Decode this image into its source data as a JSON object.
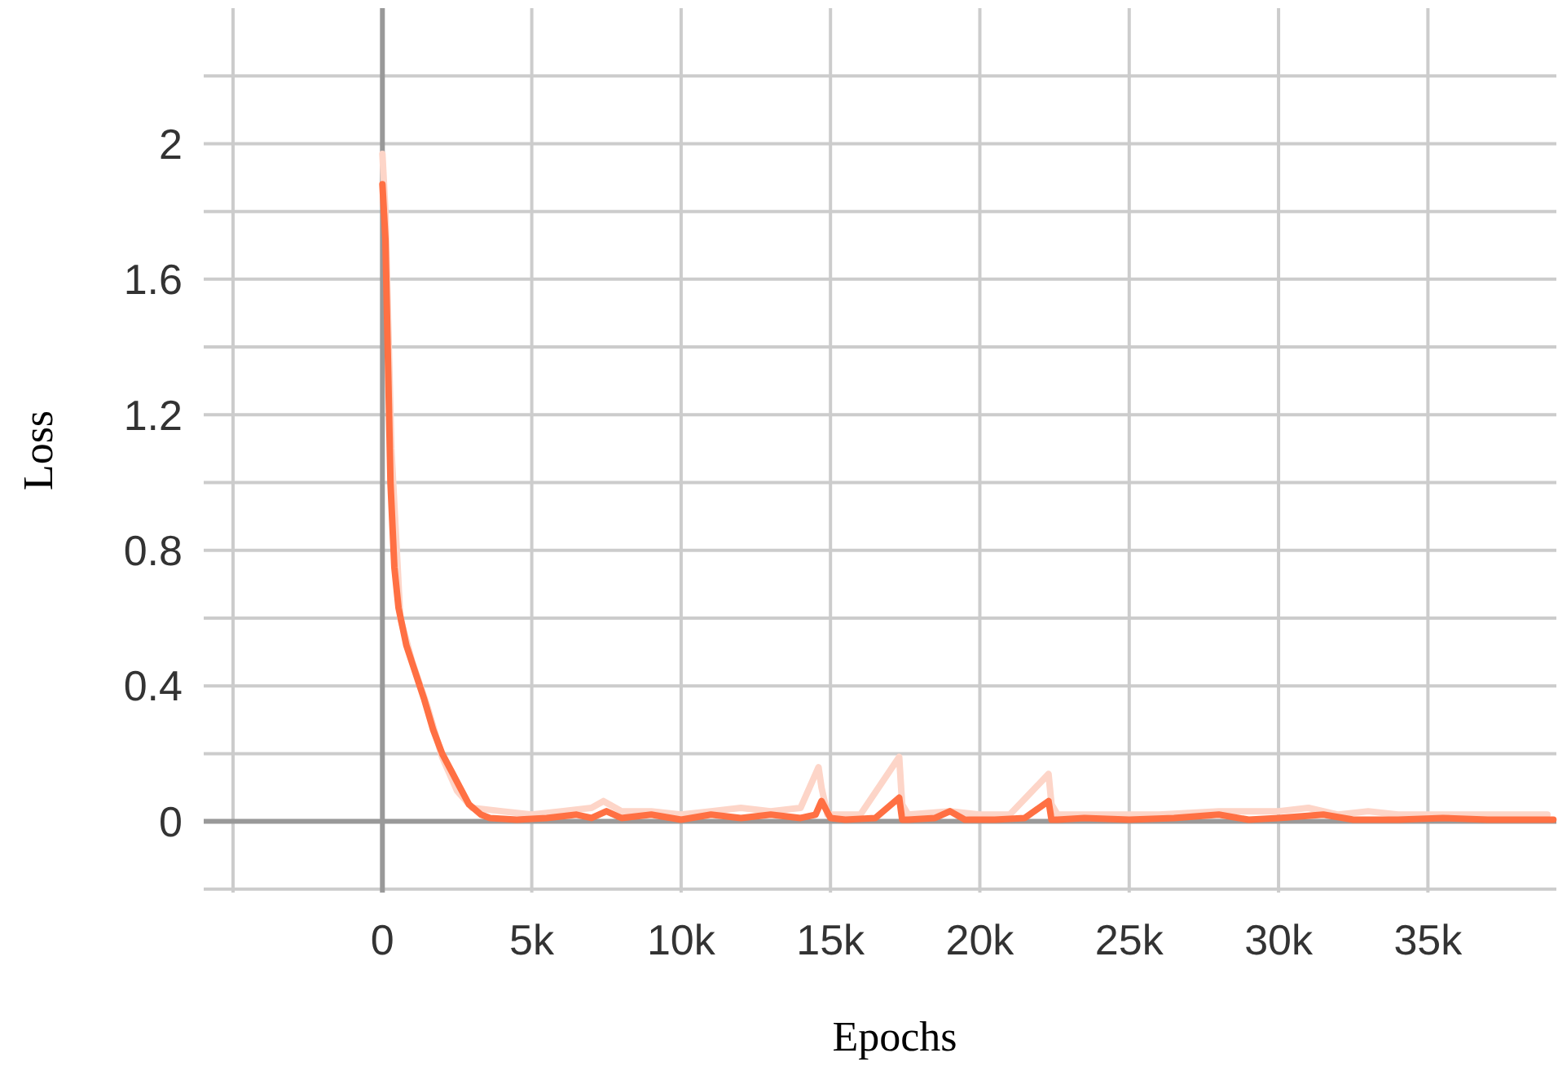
{
  "chart_data": {
    "type": "line",
    "xlabel": "Epochs",
    "ylabel": "Loss",
    "xlim": [
      -5000,
      39300
    ],
    "ylim": [
      -0.21,
      2.4
    ],
    "xticks": [
      {
        "value": -5000,
        "label": null
      },
      {
        "value": 0,
        "label": "0"
      },
      {
        "value": 5000,
        "label": "5k"
      },
      {
        "value": 10000,
        "label": "10k"
      },
      {
        "value": 15000,
        "label": "15k"
      },
      {
        "value": 20000,
        "label": "20k"
      },
      {
        "value": 25000,
        "label": "25k"
      },
      {
        "value": 30000,
        "label": "30k"
      },
      {
        "value": 35000,
        "label": "35k"
      }
    ],
    "yticks": [
      {
        "value": -0.2,
        "label": null
      },
      0,
      {
        "value": 0.2,
        "label": null
      },
      0.4,
      {
        "value": 0.6,
        "label": null
      },
      0.8,
      {
        "value": 1.0,
        "label": null
      },
      1.2,
      {
        "value": 1.4,
        "label": null
      },
      1.6,
      {
        "value": 1.8,
        "label": null
      },
      2,
      {
        "value": 2.2,
        "label": null
      }
    ],
    "grid": true,
    "line_style": "solid",
    "marker": "none",
    "series": [
      {
        "color": "#fdd5c8",
        "x": [
          0,
          100,
          300,
          600,
          1000,
          1500,
          2000,
          2500,
          3000,
          4000,
          5000,
          6000,
          7000,
          7400,
          8000,
          9000,
          10000,
          11000,
          12000,
          13000,
          14000,
          14600,
          14700,
          14900,
          16000,
          17300,
          17400,
          17600,
          19000,
          20000,
          21000,
          22300,
          22400,
          22600,
          24000,
          26000,
          28000,
          30000,
          31000,
          32000,
          33000,
          34000,
          36000,
          38000,
          39000
        ],
        "values": [
          1.97,
          1.8,
          1.1,
          0.6,
          0.47,
          0.34,
          0.19,
          0.09,
          0.04,
          0.03,
          0.02,
          0.03,
          0.04,
          0.06,
          0.03,
          0.03,
          0.02,
          0.03,
          0.04,
          0.03,
          0.04,
          0.16,
          0.1,
          0.02,
          0.02,
          0.19,
          0.05,
          0.02,
          0.03,
          0.02,
          0.02,
          0.14,
          0.05,
          0.02,
          0.02,
          0.02,
          0.03,
          0.03,
          0.04,
          0.02,
          0.03,
          0.02,
          0.02,
          0.02,
          0.02
        ]
      },
      {
        "color": "#ff7043",
        "x": [
          0,
          100,
          200,
          270,
          400,
          540,
          800,
          1100,
          1400,
          1700,
          2000,
          2300,
          2600,
          2900,
          3300,
          3600,
          4500,
          5500,
          6500,
          7000,
          7500,
          8000,
          9000,
          10000,
          11000,
          12000,
          13000,
          14000,
          14500,
          14700,
          15000,
          15500,
          16500,
          17300,
          17400,
          17600,
          18500,
          19000,
          19500,
          20500,
          21500,
          22300,
          22400,
          22600,
          23500,
          25000,
          26500,
          28000,
          29000,
          30000,
          31500,
          32500,
          34000,
          35500,
          37000,
          38500,
          39200
        ],
        "values": [
          1.88,
          1.72,
          1.3,
          1.0,
          0.75,
          0.63,
          0.52,
          0.44,
          0.36,
          0.27,
          0.2,
          0.15,
          0.1,
          0.05,
          0.02,
          0.01,
          0.005,
          0.01,
          0.02,
          0.01,
          0.03,
          0.01,
          0.02,
          0.005,
          0.02,
          0.01,
          0.02,
          0.01,
          0.02,
          0.06,
          0.01,
          0.005,
          0.01,
          0.07,
          0.005,
          0.005,
          0.01,
          0.03,
          0.005,
          0.005,
          0.01,
          0.06,
          0.005,
          0.005,
          0.01,
          0.005,
          0.01,
          0.02,
          0.005,
          0.01,
          0.02,
          0.005,
          0.005,
          0.01,
          0.005,
          0.005,
          0.005
        ]
      }
    ]
  }
}
